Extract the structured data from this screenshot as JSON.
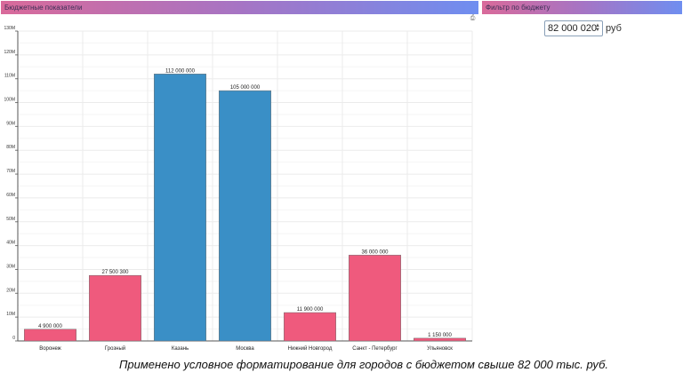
{
  "header": {
    "left_title": "Бюджетные показатели",
    "right_title": "Фильтр по бюджету"
  },
  "toolbar": {
    "print_icon": "printer-icon"
  },
  "filter": {
    "value": "82 000 020",
    "unit": "руб"
  },
  "caption": "Применено условное форматирование для городов с бюджетом свыше 82 000 тыс. руб.",
  "colors": {
    "above_threshold": "#3a8fc6",
    "below_threshold": "#ef5a7d",
    "grid": "#ebebeb"
  },
  "chart_data": {
    "type": "bar",
    "categories": [
      "Воронеж",
      "Грозный",
      "Казань",
      "Москва",
      "Нижний Новгород",
      "Санкт - Петербург",
      "Ульяновск"
    ],
    "values": [
      4900000,
      27500300,
      112000000,
      105000000,
      11900000,
      36000000,
      1150000
    ],
    "value_labels": [
      "4 900 000",
      "27 500 300",
      "112 000 000",
      "105 000 000",
      "11 900 000",
      "36 000 000",
      "1 150 000"
    ],
    "highlighted": [
      false,
      false,
      true,
      true,
      false,
      false,
      false
    ],
    "threshold": 82000020,
    "ylim": [
      0,
      130000000
    ],
    "yticks": [
      0,
      10000000,
      20000000,
      30000000,
      40000000,
      50000000,
      60000000,
      70000000,
      80000000,
      90000000,
      100000000,
      110000000,
      120000000,
      130000000
    ],
    "ytick_labels": [
      "0",
      "10M",
      "20M",
      "30M",
      "40M",
      "50M",
      "60M",
      "70M",
      "80M",
      "90M",
      "100M",
      "110M",
      "120M",
      "130M"
    ],
    "grid": true
  }
}
